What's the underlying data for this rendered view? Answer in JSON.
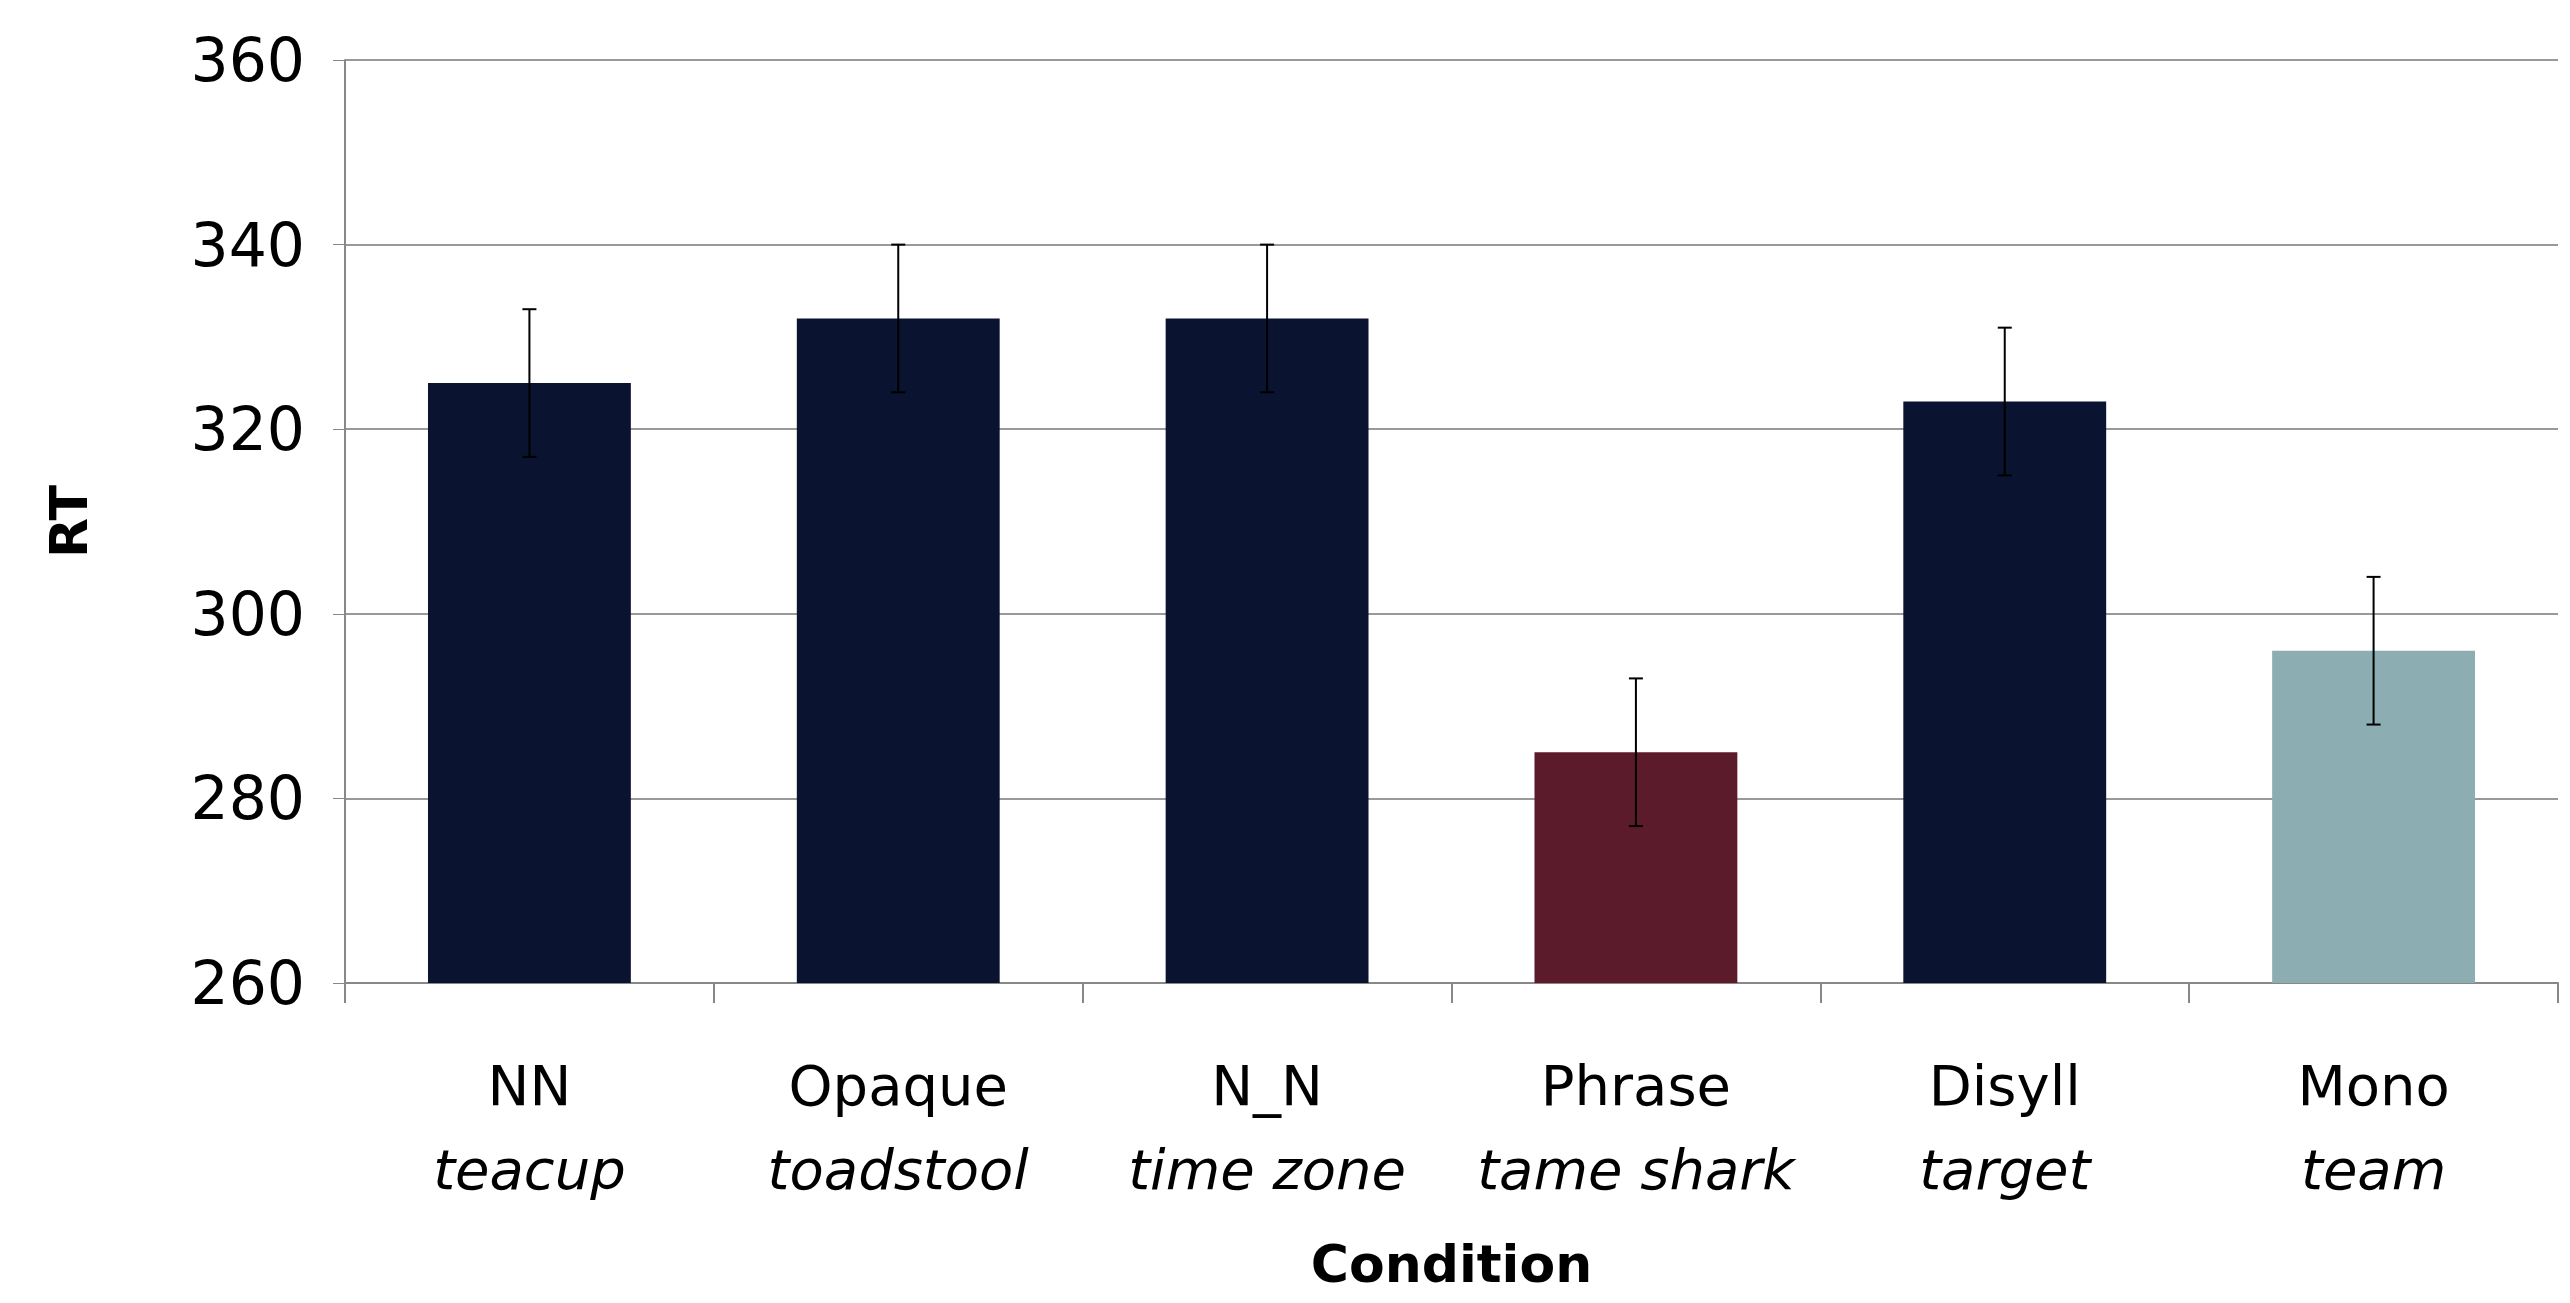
{
  "chart_data": {
    "type": "bar",
    "xlabel": "Condition",
    "ylabel": "RT",
    "categories": [
      "NN\nteacup",
      "Opaque\ntoadstool",
      "N_N\ntime zone",
      "Phrase\ntame shark",
      "Disyll\ntarget",
      "Mono\nteam"
    ],
    "values": [
      325,
      332,
      332,
      285,
      323,
      296
    ],
    "colors": [
      "#0a1330",
      "#0a1330",
      "#0a1330",
      "#5c1b2a",
      "#0a1330",
      "#8cadb2"
    ],
    "errors": [
      8,
      8,
      8,
      8,
      8,
      8
    ],
    "ylim": [
      260,
      360
    ],
    "yticks": [
      260,
      280,
      300,
      320,
      340,
      360
    ],
    "grid": "y"
  }
}
